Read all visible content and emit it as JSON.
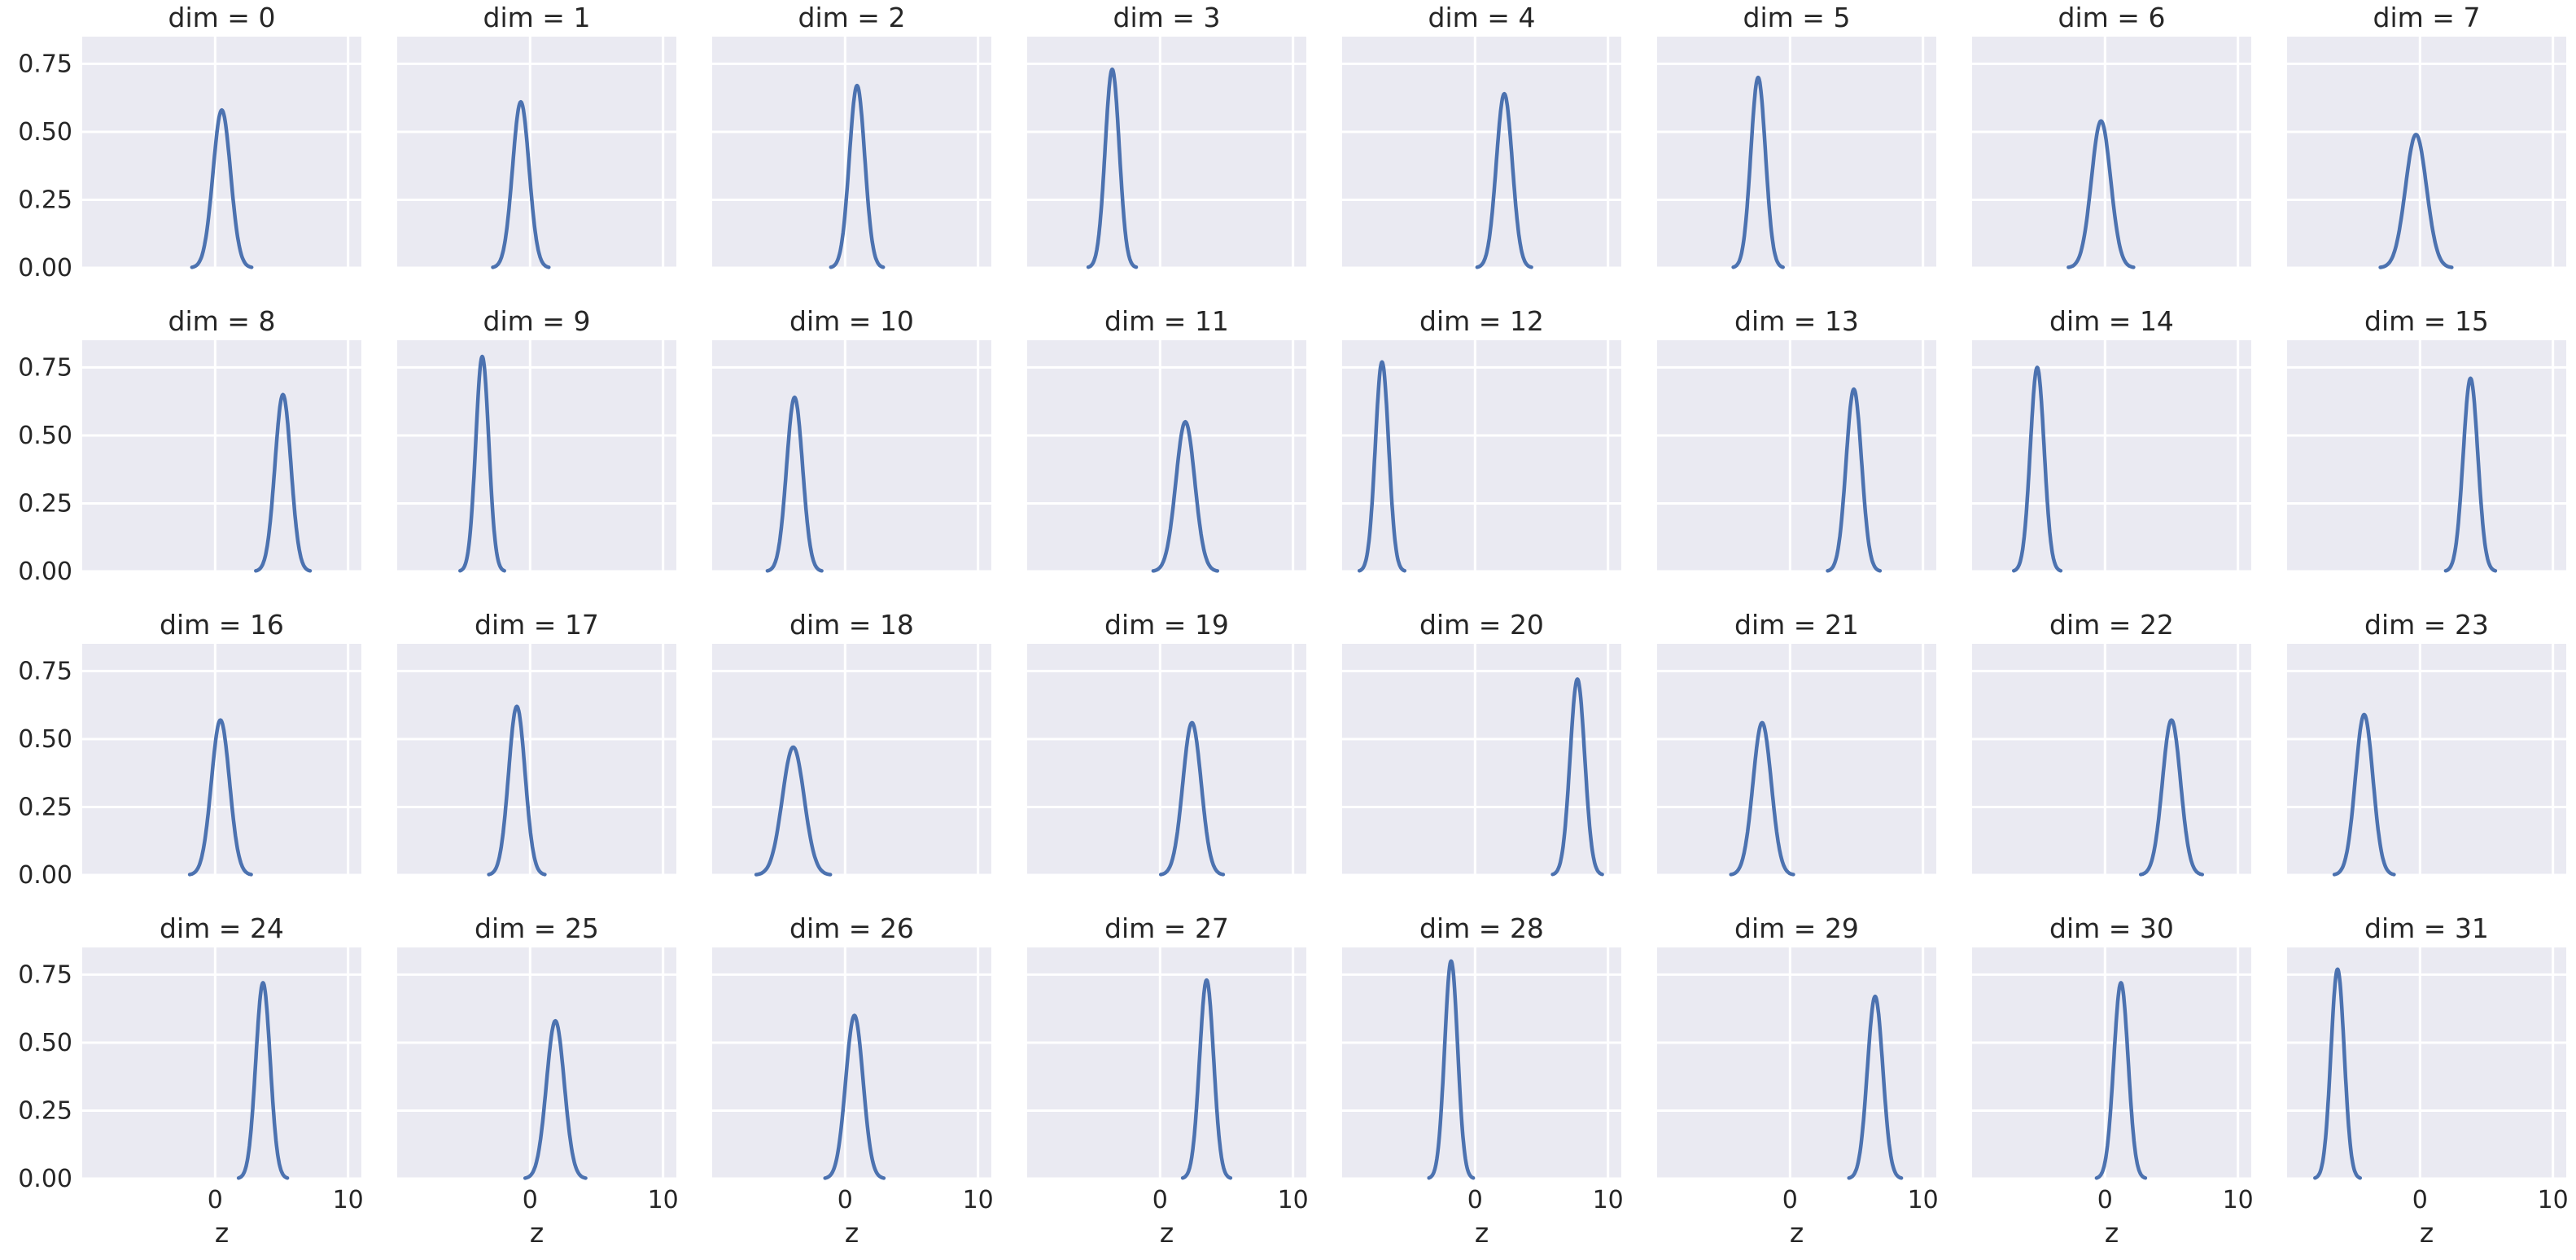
{
  "chart_data": {
    "type": "facet-grid-kde",
    "facet_variable": "dim",
    "title_template": "dim = {value}",
    "columns": 8,
    "xlabel": "z",
    "ylabel": "",
    "xlim": [
      -10,
      11
    ],
    "ylim": [
      0,
      0.85
    ],
    "x_ticks": [
      0,
      10
    ],
    "y_ticks": [
      0.0,
      0.25,
      0.5,
      0.75
    ],
    "y_tick_labels": [
      "0.00",
      "0.25",
      "0.50",
      "0.75"
    ],
    "grid": true,
    "line_color": "#4c72b0",
    "background_color": "#eaeaf2",
    "panels": [
      {
        "dim": 0,
        "title": "dim = 0",
        "center": 0.5,
        "peak": 0.58,
        "width": 0.66
      },
      {
        "dim": 1,
        "title": "dim = 1",
        "center": -0.7,
        "peak": 0.61,
        "width": 0.62
      },
      {
        "dim": 2,
        "title": "dim = 2",
        "center": 0.9,
        "peak": 0.67,
        "width": 0.58
      },
      {
        "dim": 3,
        "title": "dim = 3",
        "center": -3.6,
        "peak": 0.73,
        "width": 0.53
      },
      {
        "dim": 4,
        "title": "dim = 4",
        "center": 2.2,
        "peak": 0.64,
        "width": 0.6
      },
      {
        "dim": 5,
        "title": "dim = 5",
        "center": -2.4,
        "peak": 0.7,
        "width": 0.55
      },
      {
        "dim": 6,
        "title": "dim = 6",
        "center": -0.3,
        "peak": 0.54,
        "width": 0.72
      },
      {
        "dim": 7,
        "title": "dim = 7",
        "center": -0.3,
        "peak": 0.49,
        "width": 0.79
      },
      {
        "dim": 8,
        "title": "dim = 8",
        "center": 5.1,
        "peak": 0.65,
        "width": 0.6
      },
      {
        "dim": 9,
        "title": "dim = 9",
        "center": -3.6,
        "peak": 0.79,
        "width": 0.49
      },
      {
        "dim": 10,
        "title": "dim = 10",
        "center": -3.8,
        "peak": 0.64,
        "width": 0.6
      },
      {
        "dim": 11,
        "title": "dim = 11",
        "center": 1.9,
        "peak": 0.55,
        "width": 0.71
      },
      {
        "dim": 12,
        "title": "dim = 12",
        "center": -7.0,
        "peak": 0.77,
        "width": 0.5
      },
      {
        "dim": 13,
        "title": "dim = 13",
        "center": 4.8,
        "peak": 0.67,
        "width": 0.58
      },
      {
        "dim": 14,
        "title": "dim = 14",
        "center": -5.1,
        "peak": 0.75,
        "width": 0.52
      },
      {
        "dim": 15,
        "title": "dim = 15",
        "center": 3.8,
        "peak": 0.71,
        "width": 0.55
      },
      {
        "dim": 16,
        "title": "dim = 16",
        "center": 0.4,
        "peak": 0.57,
        "width": 0.68
      },
      {
        "dim": 17,
        "title": "dim = 17",
        "center": -1.0,
        "peak": 0.62,
        "width": 0.62
      },
      {
        "dim": 18,
        "title": "dim = 18",
        "center": -3.9,
        "peak": 0.47,
        "width": 0.82
      },
      {
        "dim": 19,
        "title": "dim = 19",
        "center": 2.4,
        "peak": 0.56,
        "width": 0.69
      },
      {
        "dim": 20,
        "title": "dim = 20",
        "center": 7.7,
        "peak": 0.72,
        "width": 0.55
      },
      {
        "dim": 21,
        "title": "dim = 21",
        "center": -2.1,
        "peak": 0.56,
        "width": 0.69
      },
      {
        "dim": 22,
        "title": "dim = 22",
        "center": 5.0,
        "peak": 0.57,
        "width": 0.68
      },
      {
        "dim": 23,
        "title": "dim = 23",
        "center": -4.2,
        "peak": 0.59,
        "width": 0.66
      },
      {
        "dim": 24,
        "title": "dim = 24",
        "center": 3.6,
        "peak": 0.72,
        "width": 0.54
      },
      {
        "dim": 25,
        "title": "dim = 25",
        "center": 1.9,
        "peak": 0.58,
        "width": 0.67
      },
      {
        "dim": 26,
        "title": "dim = 26",
        "center": 0.7,
        "peak": 0.6,
        "width": 0.65
      },
      {
        "dim": 27,
        "title": "dim = 27",
        "center": 3.5,
        "peak": 0.73,
        "width": 0.53
      },
      {
        "dim": 28,
        "title": "dim = 28",
        "center": -1.8,
        "peak": 0.8,
        "width": 0.49
      },
      {
        "dim": 29,
        "title": "dim = 29",
        "center": 6.4,
        "peak": 0.67,
        "width": 0.58
      },
      {
        "dim": 30,
        "title": "dim = 30",
        "center": 1.2,
        "peak": 0.72,
        "width": 0.54
      },
      {
        "dim": 31,
        "title": "dim = 31",
        "center": -6.2,
        "peak": 0.77,
        "width": 0.5
      }
    ]
  }
}
